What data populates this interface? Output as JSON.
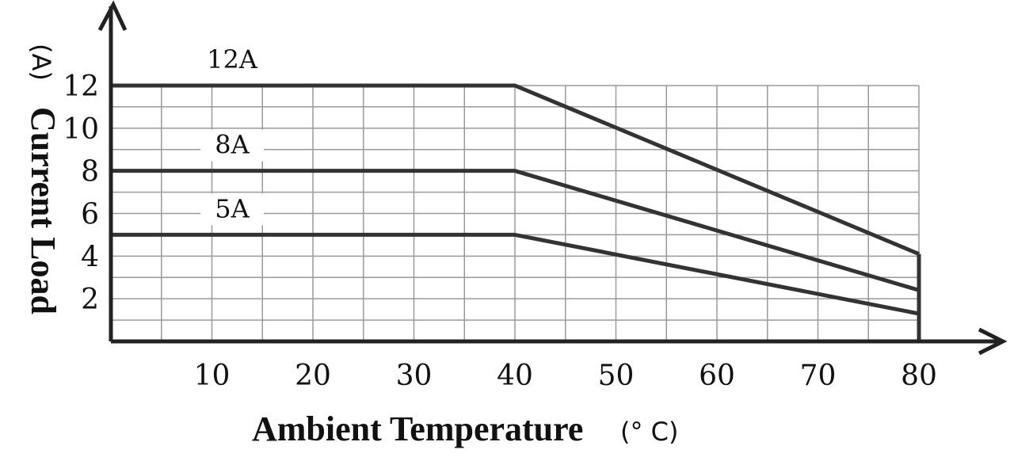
{
  "chart_data": {
    "type": "line",
    "xlabel": "Ambient Temperature",
    "xunit": "(° C)",
    "ylabel": "Current Load",
    "yunit": "(A)",
    "xlim": [
      0,
      80
    ],
    "ylim": [
      0,
      12
    ],
    "grid": true,
    "x_ticks": [
      10,
      20,
      30,
      40,
      50,
      60,
      70,
      80
    ],
    "y_ticks": [
      2,
      4,
      6,
      8,
      10,
      12
    ],
    "series": [
      {
        "name": "12A",
        "points": [
          [
            0,
            12
          ],
          [
            40,
            12
          ],
          [
            80,
            4.1
          ]
        ]
      },
      {
        "name": "8A",
        "points": [
          [
            0,
            8
          ],
          [
            40,
            8
          ],
          [
            80,
            2.4
          ]
        ]
      },
      {
        "name": "5A",
        "points": [
          [
            0,
            5
          ],
          [
            40,
            5
          ],
          [
            80,
            1.3
          ]
        ]
      }
    ],
    "colors": {
      "line": "#333333",
      "axis": "#222222",
      "grid": "#9a9a9a"
    }
  }
}
